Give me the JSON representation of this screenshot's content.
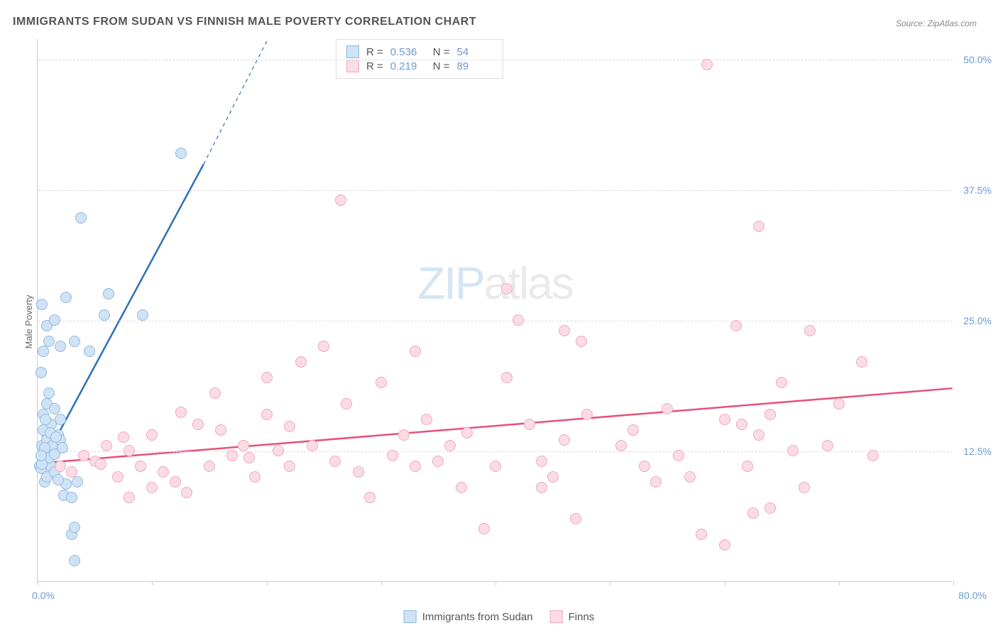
{
  "title": "IMMIGRANTS FROM SUDAN VS FINNISH MALE POVERTY CORRELATION CHART",
  "source": "Source: ZipAtlas.com",
  "ylabel": "Male Poverty",
  "watermark": {
    "zip": "ZIP",
    "atlas": "atlas"
  },
  "chart": {
    "type": "scatter",
    "background_color": "#ffffff",
    "grid_color": "#dddddd",
    "axis_color": "#cccccc",
    "font_color_axis": "#6b9bd1",
    "xlim": [
      0,
      80
    ],
    "ylim": [
      0,
      52
    ],
    "xtick_positions": [
      0,
      10,
      20,
      30,
      40,
      50,
      60,
      70,
      80
    ],
    "xtick_labels": {
      "0": "0.0%",
      "80": "80.0%"
    },
    "ytick_positions": [
      12.5,
      25,
      37.5,
      50
    ],
    "ytick_labels": [
      "12.5%",
      "25.0%",
      "37.5%",
      "50.0%"
    ],
    "marker_radius": 8,
    "marker_border_width": 1.5,
    "line_width": 2.5,
    "series": [
      {
        "name": "Immigrants from Sudan",
        "fill_color": "#cfe3f5",
        "border_color": "#8fb8de",
        "line_color": "#2f6fb3",
        "r": "0.536",
        "n": "54",
        "regression": {
          "x1": 0,
          "y1": 10.5,
          "x2": 14.5,
          "y2": 40,
          "dash_x2": 22,
          "dash_y2": 56
        },
        "points": [
          [
            0.2,
            11
          ],
          [
            0.3,
            10.8
          ],
          [
            0.4,
            13
          ],
          [
            0.5,
            12
          ],
          [
            0.6,
            11.5
          ],
          [
            0.8,
            14
          ],
          [
            1,
            12.5
          ],
          [
            1.2,
            15
          ],
          [
            0.5,
            16
          ],
          [
            0.8,
            17
          ],
          [
            1,
            18
          ],
          [
            1.5,
            16.5
          ],
          [
            1.8,
            14
          ],
          [
            2,
            15.5
          ],
          [
            0.6,
            9.5
          ],
          [
            0.8,
            10
          ],
          [
            1.2,
            11
          ],
          [
            1.5,
            10.5
          ],
          [
            2.3,
            8.2
          ],
          [
            2.5,
            9.3
          ],
          [
            1.8,
            9.7
          ],
          [
            3,
            8
          ],
          [
            3.5,
            9.5
          ],
          [
            0.3,
            20
          ],
          [
            0.5,
            22
          ],
          [
            0.8,
            24.5
          ],
          [
            1,
            23
          ],
          [
            1.5,
            25
          ],
          [
            2,
            22.5
          ],
          [
            3.2,
            23
          ],
          [
            4.5,
            22
          ],
          [
            0.4,
            26.5
          ],
          [
            2.5,
            27.2
          ],
          [
            5.8,
            25.5
          ],
          [
            9.2,
            25.5
          ],
          [
            3.8,
            34.8
          ],
          [
            6.2,
            27.5
          ],
          [
            3.2,
            2
          ],
          [
            3,
            4.5
          ],
          [
            3.2,
            5.2
          ],
          [
            0.5,
            14.5
          ],
          [
            0.8,
            13.5
          ],
          [
            1.3,
            13
          ],
          [
            2,
            13.5
          ],
          [
            1,
            11.8
          ],
          [
            1.5,
            12.2
          ],
          [
            0.4,
            11.2
          ],
          [
            0.6,
            12.8
          ],
          [
            12.5,
            41
          ],
          [
            0.3,
            12
          ],
          [
            0.7,
            15.5
          ],
          [
            1.1,
            14.2
          ],
          [
            1.6,
            13.8
          ],
          [
            2.2,
            12.8
          ]
        ]
      },
      {
        "name": "Finns",
        "fill_color": "#fbdce4",
        "border_color": "#f0a8bd",
        "line_color": "#e94f7a",
        "r": "0.219",
        "n": "89",
        "regression": {
          "x1": 0,
          "y1": 11.3,
          "x2": 80,
          "y2": 18.5
        },
        "points": [
          [
            2,
            11
          ],
          [
            3,
            10.5
          ],
          [
            4,
            12
          ],
          [
            5,
            11.5
          ],
          [
            6,
            13
          ],
          [
            7,
            10
          ],
          [
            8,
            12.5
          ],
          [
            9,
            11
          ],
          [
            10,
            14
          ],
          [
            11,
            10.5
          ],
          [
            12,
            9.5
          ],
          [
            13,
            8.5
          ],
          [
            8,
            8
          ],
          [
            10,
            9
          ],
          [
            14,
            15
          ],
          [
            15,
            11
          ],
          [
            16,
            14.5
          ],
          [
            17,
            12
          ],
          [
            18,
            13
          ],
          [
            19,
            10
          ],
          [
            20,
            16
          ],
          [
            21,
            12.5
          ],
          [
            22,
            11
          ],
          [
            23,
            21
          ],
          [
            24,
            13
          ],
          [
            20,
            19.5
          ],
          [
            26,
            11.5
          ],
          [
            27,
            17
          ],
          [
            28,
            10.5
          ],
          [
            29,
            8
          ],
          [
            30,
            19
          ],
          [
            31,
            12
          ],
          [
            32,
            14
          ],
          [
            33,
            11
          ],
          [
            34,
            15.5
          ],
          [
            35,
            11.5
          ],
          [
            36,
            13
          ],
          [
            37,
            9
          ],
          [
            26.5,
            36.5
          ],
          [
            39,
            5
          ],
          [
            40,
            11
          ],
          [
            41,
            28
          ],
          [
            41,
            19.5
          ],
          [
            43,
            15
          ],
          [
            44,
            11.5
          ],
          [
            45,
            10
          ],
          [
            46,
            13.5
          ],
          [
            47,
            6
          ],
          [
            48,
            16
          ],
          [
            46,
            24
          ],
          [
            42,
            25
          ],
          [
            51,
            13
          ],
          [
            52,
            14.5
          ],
          [
            53,
            11
          ],
          [
            54,
            9.5
          ],
          [
            55,
            16.5
          ],
          [
            56,
            12
          ],
          [
            57,
            10
          ],
          [
            58,
            4.5
          ],
          [
            47.5,
            23
          ],
          [
            60,
            15.5
          ],
          [
            61,
            24.5
          ],
          [
            62,
            11
          ],
          [
            63,
            14
          ],
          [
            64,
            16
          ],
          [
            65,
            19
          ],
          [
            66,
            12.5
          ],
          [
            67,
            9
          ],
          [
            67.5,
            24
          ],
          [
            69,
            13
          ],
          [
            70,
            17
          ],
          [
            63,
            34
          ],
          [
            72,
            21
          ],
          [
            73,
            12
          ],
          [
            60,
            3.5
          ],
          [
            64,
            7
          ],
          [
            44,
            9
          ],
          [
            61.5,
            15
          ],
          [
            58.5,
            49.5
          ],
          [
            62.5,
            6.5
          ],
          [
            5.5,
            11.2
          ],
          [
            7.5,
            13.8
          ],
          [
            12.5,
            16.2
          ],
          [
            15.5,
            18
          ],
          [
            25,
            22.5
          ],
          [
            33,
            22
          ],
          [
            37.5,
            14.2
          ],
          [
            18.5,
            11.8
          ],
          [
            22,
            14.8
          ]
        ]
      }
    ]
  },
  "legend_bottom": [
    {
      "label": "Immigrants from Sudan",
      "series_idx": 0
    },
    {
      "label": "Finns",
      "series_idx": 1
    }
  ]
}
